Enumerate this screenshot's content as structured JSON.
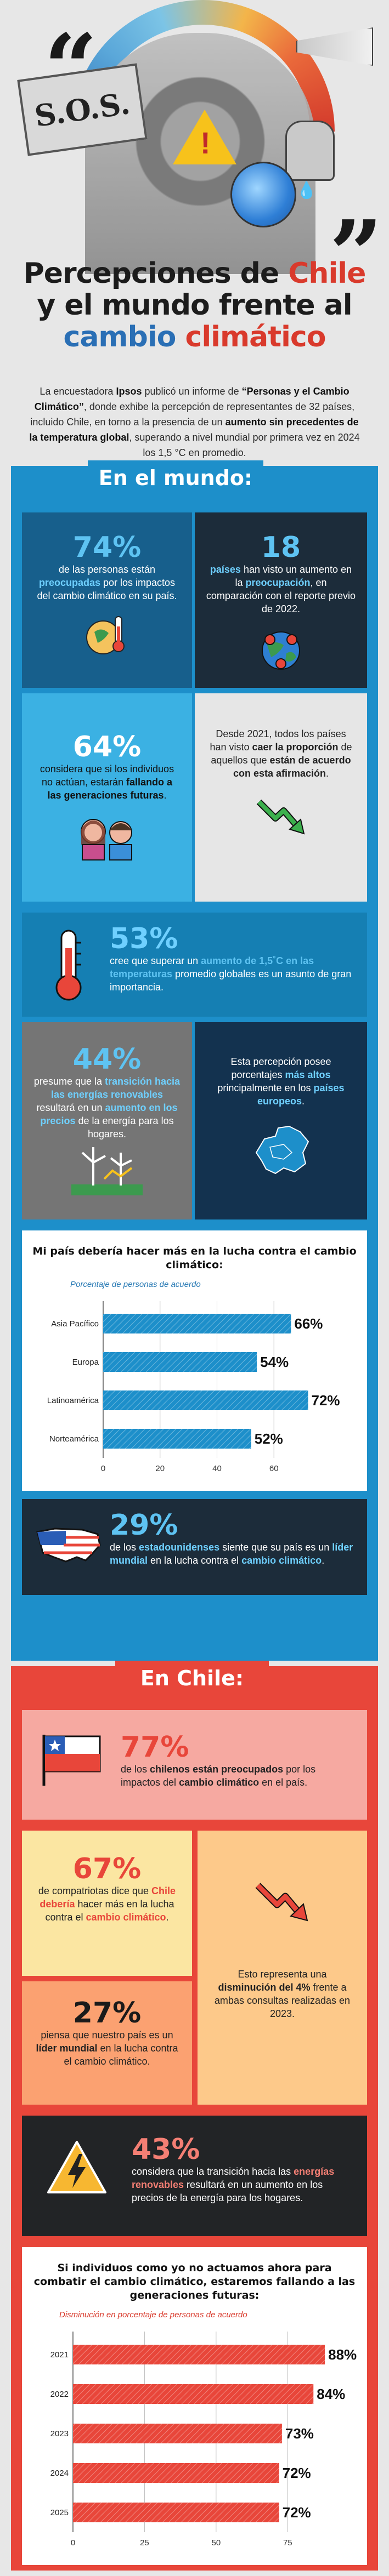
{
  "header": {
    "sign_text": "S.O.S.",
    "title_line1_a": "Percepciones de",
    "title_line1_b": "Chile",
    "title_line2_a": "y el mundo frente al",
    "title_line3_a": "cambio",
    "title_line3_b": "climático"
  },
  "intro": {
    "p1": "La encuestadora ",
    "ipsos": "Ipsos",
    "p2": " publicó un informe de ",
    "report": "“Personas y el Cambio Climático”",
    "p3": ", donde exhibe la percepción de representantes de 32 países, incluido Chile, en torno a la presencia de un ",
    "bold2": "aumento sin precedentes de la temperatura global",
    "p4": ", superando a nivel mundial por primera vez en 2024 los 1,5 °C en promedio."
  },
  "world": {
    "tag": "En el mundo:",
    "c1": {
      "big": "74%",
      "t1": "de las personas están ",
      "hl": "preocupadas",
      "t2": " por los impactos del cambio climático en su país."
    },
    "c2": {
      "big": "18",
      "hl1": "países",
      "t1": " han visto un aumento en la ",
      "hl2": "preocupación",
      "t2": ", en comparación con el reporte previo de 2022."
    },
    "c3": {
      "big": "64%",
      "t1": "considera que si los individuos no actúan, estarán ",
      "hl": "fallando a las generaciones futuras",
      "t2": "."
    },
    "c4": {
      "t1": "Desde 2021, todos los países han visto ",
      "hl1": "caer la proporción",
      "t2": " de aquellos que ",
      "hl2": "están de acuerdo con esta afirmación",
      "t3": "."
    },
    "c5": {
      "big": "53%",
      "t1": "cree que superar un ",
      "hl": "aumento de 1,5˚C en las temperaturas",
      "t2": " promedio globales es un asunto de gran importancia."
    },
    "c6": {
      "big": "44%",
      "t1": "presume que la ",
      "hl1": "transición hacia las energías renovables",
      "t2": " resultará en un ",
      "hl2": "aumento en los precios",
      "t3": " de la energía para los hogares."
    },
    "c7": {
      "t1": "Esta percepción posee porcentajes ",
      "hl1": "más altos",
      "t2": " principalmente en los ",
      "hl2": "países europeos",
      "t3": "."
    },
    "c8": {
      "big": "29%",
      "t1": "de los ",
      "hl1": "estadounidenses",
      "t2": " siente que su país es un ",
      "hl2": "líder mundial",
      "t3": " en la lucha contra el ",
      "hl3": "cambio climático",
      "t4": "."
    }
  },
  "chile": {
    "tag": "En Chile:",
    "k1": {
      "big": "77%",
      "t1": "de los ",
      "hl1": "chilenos están preocupados",
      "t2": " por los impactos del ",
      "hl2": "cambio climático",
      "t3": " en el país."
    },
    "k2": {
      "big": "67%",
      "t1": "de compatriotas dice que ",
      "hl1": "Chile debería",
      "t2": " hacer más en la lucha contra el ",
      "hl2": "cambio climático",
      "t3": "."
    },
    "k3": {
      "big": "27%",
      "t1": "piensa que nuestro país es un ",
      "hl": "líder mundial",
      "t2": " en la lucha contra el cambio climático."
    },
    "k4": {
      "t1": "Esto representa una ",
      "hl": "disminución del 4%",
      "t2": " frente a ambas consultas realizadas en 2023."
    },
    "k5": {
      "big": "43%",
      "t1": "considera que la transición hacia las ",
      "hl1": "energías renovables",
      "t2": " resultará en un aumento en los precios de la energía para los hogares."
    }
  },
  "colors": {
    "blue": "#1d8fca",
    "red": "#e8463a",
    "bar_blue": "#1d8fca",
    "bar_red": "#e8463a"
  },
  "chart_data": [
    {
      "type": "bar",
      "orientation": "horizontal",
      "title": "Mi país debería hacer más en la lucha contra el cambio climático:",
      "subtitle": "Porcentaje de personas de acuerdo",
      "categories": [
        "Asia Pacífico",
        "Europa",
        "Latinoamérica",
        "Norteamérica"
      ],
      "values": [
        66,
        54,
        72,
        52
      ],
      "value_labels": [
        "66%",
        "54%",
        "72%",
        "52%"
      ],
      "xlim": [
        0,
        80
      ],
      "xticks": [
        "0",
        "20",
        "40",
        "60"
      ],
      "grid": true
    },
    {
      "type": "bar",
      "orientation": "horizontal",
      "title": "Si individuos como yo no actuamos ahora para combatir el cambio climático, estaremos fallando a las generaciones futuras:",
      "subtitle": "Disminución en porcentaje de personas de acuerdo",
      "categories": [
        "2021",
        "2022",
        "2023",
        "2024",
        "2025"
      ],
      "values": [
        88,
        84,
        73,
        72,
        72
      ],
      "value_labels": [
        "88%",
        "84%",
        "73%",
        "72%",
        "72%"
      ],
      "xlim": [
        0,
        92
      ],
      "xticks": [
        "0",
        "25",
        "50",
        "75"
      ],
      "grid": true
    }
  ]
}
